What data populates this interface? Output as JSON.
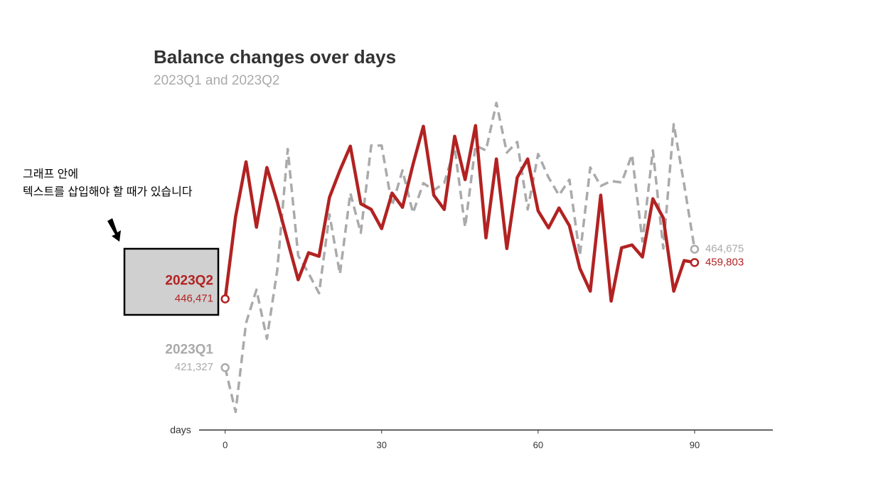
{
  "chart_data": {
    "type": "line",
    "title": "Balance changes over days",
    "subtitle": "2023Q1 and 2023Q2",
    "xlabel": "days",
    "annotation": [
      "그래프 안에",
      "텍스트를 삽입해야 할 때가 있습니다"
    ],
    "x": [
      0,
      2,
      4,
      6,
      8,
      10,
      12,
      14,
      16,
      18,
      20,
      22,
      24,
      26,
      28,
      30,
      32,
      34,
      36,
      38,
      40,
      42,
      44,
      46,
      48,
      50,
      52,
      54,
      56,
      58,
      60,
      62,
      64,
      66,
      68,
      70,
      72,
      74,
      76,
      78,
      80,
      82,
      84,
      86,
      88,
      90
    ],
    "xlim": [
      -5,
      105
    ],
    "xticks": [
      0,
      30,
      60,
      90
    ],
    "ylim": [
      398500,
      520500
    ],
    "series": [
      {
        "name": "2023Q1",
        "color": "#aaaaaa",
        "dashed": true,
        "values": [
          421327,
          405131,
          437631,
          449851,
          431911,
          457131,
          501331,
          462331,
          455831,
          448551,
          477411,
          455571,
          485211,
          470651,
          502631,
          502631,
          480531,
          493531,
          477931,
          488851,
          486251,
          488851,
          501851,
          472731,
          502631,
          500811,
          518231,
          500031,
          503931,
          479231,
          499511,
          490931,
          484431,
          490151,
          462331,
          494571,
          487811,
          489631,
          489111,
          499251,
          467531,
          500811,
          464931,
          510431,
          488331,
          464675
        ],
        "start_label": "421,327",
        "end_label": "464,675"
      },
      {
        "name": "2023Q2",
        "color": "#b22222",
        "dashed": false,
        "highlight": true,
        "values": [
          446471,
          476631,
          496651,
          472731,
          494571,
          481831,
          467531,
          453491,
          463371,
          462071,
          483651,
          493531,
          502371,
          481311,
          479231,
          472211,
          485211,
          480011,
          495611,
          509651,
          484431,
          479231,
          506011,
          490151,
          509911,
          468831,
          497691,
          464931,
          490931,
          497691,
          478711,
          472471,
          479751,
          473251,
          457651,
          449331,
          484431,
          445691,
          465191,
          466231,
          461811,
          483131,
          476111,
          449331,
          460511,
          459803
        ],
        "start_label": "446,471",
        "end_label": "459,803"
      }
    ]
  }
}
